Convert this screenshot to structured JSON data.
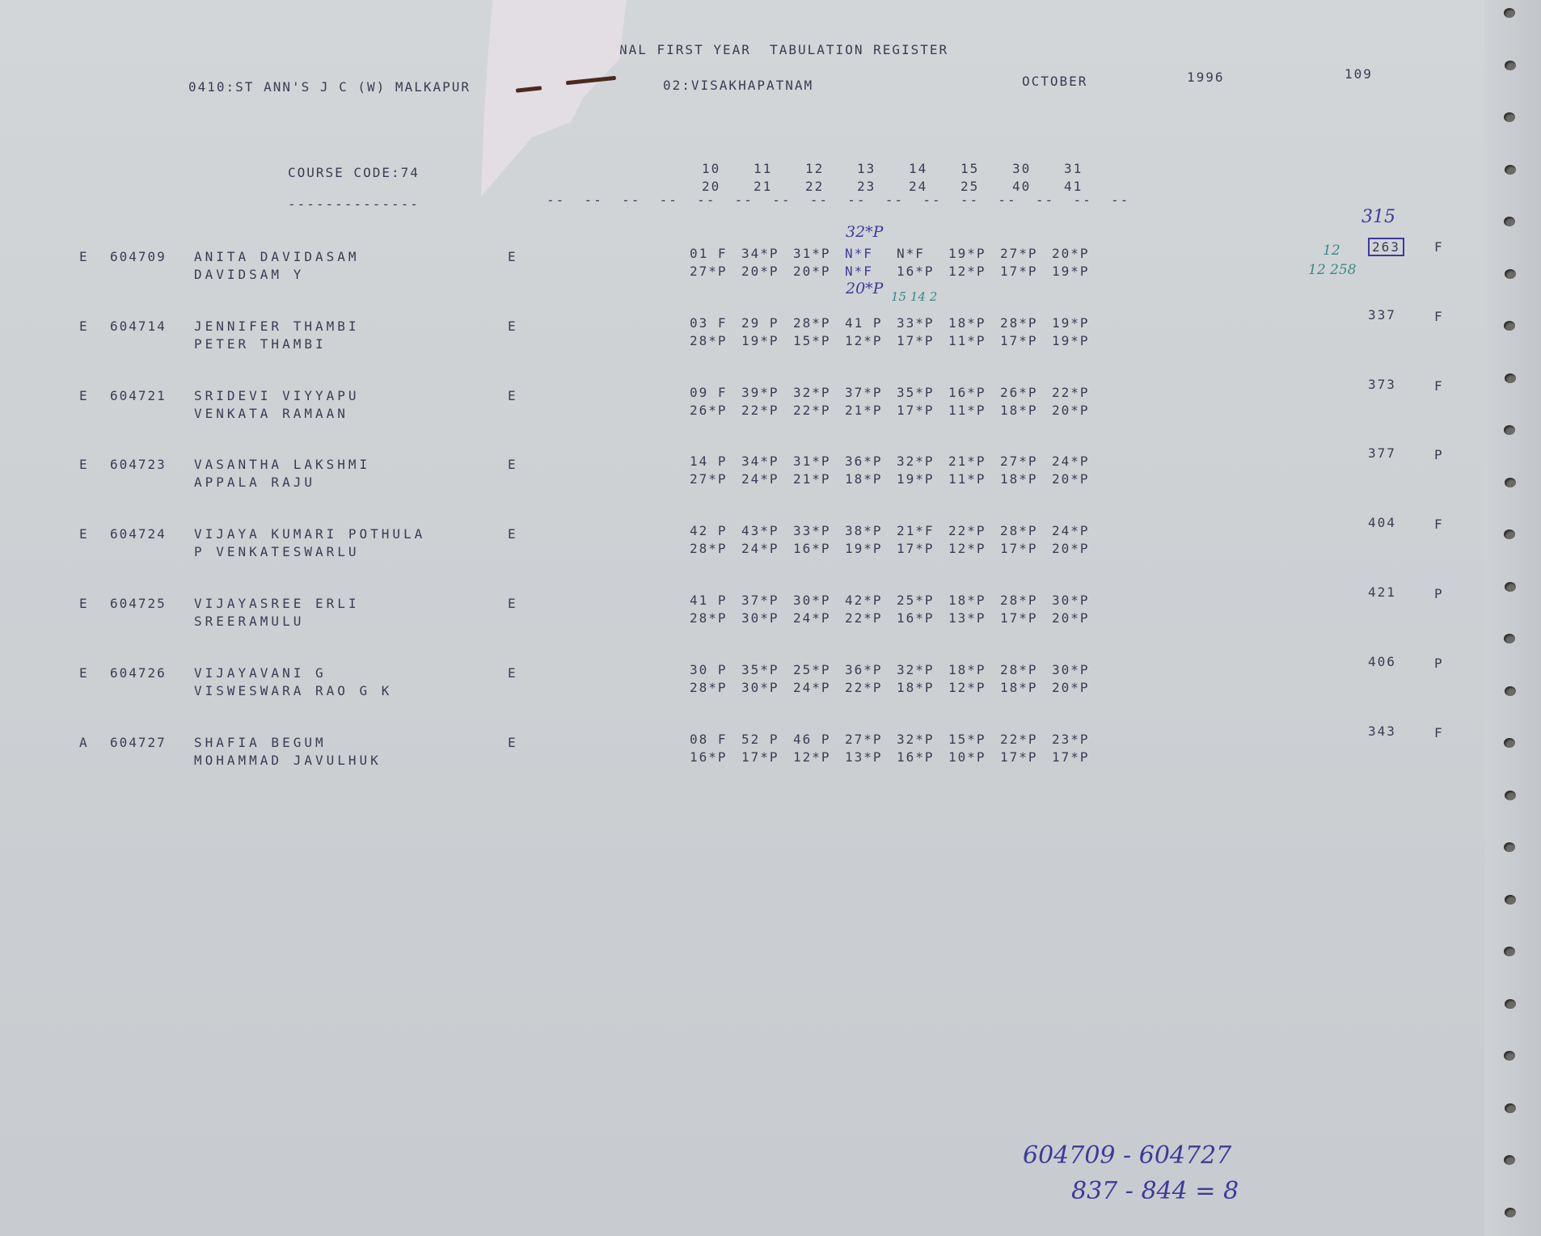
{
  "header": {
    "title": "NAL FIRST YEAR  TABULATION REGISTER",
    "college": "0410:ST ANN'S J C (W) MALKAPUR",
    "district": "02:VISAKHAPATNAM",
    "month": "OCTOBER",
    "year": "1996",
    "page": "109",
    "course_code": "COURSE CODE:74",
    "course_underline": "--------------",
    "subject_codes_top": [
      "10",
      "11",
      "12",
      "13",
      "14",
      "15",
      "30",
      "31"
    ],
    "subject_codes_bottom": [
      "20",
      "21",
      "22",
      "23",
      "24",
      "25",
      "40",
      "41"
    ],
    "dash_marks": "--  --  --  --  --  --  --  --  --  --  --  --  --  --  --  --"
  },
  "rows": [
    {
      "cat": "E",
      "roll": "604709",
      "name": "ANITA DAVIDASAM",
      "parent": "DAVIDSAM Y",
      "medium": "E",
      "marks1": [
        "01 F",
        "34*P",
        "31*P",
        "N*F",
        "N*F",
        "19*P",
        "27*P",
        "20*P"
      ],
      "marks2": [
        "27*P",
        "20*P",
        "20*P",
        "N*F",
        "16*P",
        "12*P",
        "17*P",
        "19*P"
      ],
      "total": "263",
      "result": "F"
    },
    {
      "cat": "E",
      "roll": "604714",
      "name": "JENNIFER THAMBI",
      "parent": "PETER THAMBI",
      "medium": "E",
      "marks1": [
        "03 F",
        "29 P",
        "28*P",
        "41 P",
        "33*P",
        "18*P",
        "28*P",
        "19*P"
      ],
      "marks2": [
        "28*P",
        "19*P",
        "15*P",
        "12*P",
        "17*P",
        "11*P",
        "17*P",
        "19*P"
      ],
      "total": "337",
      "result": "F"
    },
    {
      "cat": "E",
      "roll": "604721",
      "name": "SRIDEVI VIYYAPU",
      "parent": "VENKATA RAMAAN",
      "medium": "E",
      "marks1": [
        "09 F",
        "39*P",
        "32*P",
        "37*P",
        "35*P",
        "16*P",
        "26*P",
        "22*P"
      ],
      "marks2": [
        "26*P",
        "22*P",
        "22*P",
        "21*P",
        "17*P",
        "11*P",
        "18*P",
        "20*P"
      ],
      "total": "373",
      "result": "F"
    },
    {
      "cat": "E",
      "roll": "604723",
      "name": "VASANTHA LAKSHMI",
      "parent": "APPALA RAJU",
      "medium": "E",
      "marks1": [
        "14 P",
        "34*P",
        "31*P",
        "36*P",
        "32*P",
        "21*P",
        "27*P",
        "24*P"
      ],
      "marks2": [
        "27*P",
        "24*P",
        "21*P",
        "18*P",
        "19*P",
        "11*P",
        "18*P",
        "20*P"
      ],
      "total": "377",
      "result": "P"
    },
    {
      "cat": "E",
      "roll": "604724",
      "name": "VIJAYA KUMARI POTHULA",
      "parent": "P VENKATESWARLU",
      "medium": "E",
      "marks1": [
        "42 P",
        "43*P",
        "33*P",
        "38*P",
        "21*F",
        "22*P",
        "28*P",
        "24*P"
      ],
      "marks2": [
        "28*P",
        "24*P",
        "16*P",
        "19*P",
        "17*P",
        "12*P",
        "17*P",
        "20*P"
      ],
      "total": "404",
      "result": "F"
    },
    {
      "cat": "E",
      "roll": "604725",
      "name": "VIJAYASREE ERLI",
      "parent": "SREERAMULU",
      "medium": "E",
      "marks1": [
        "41 P",
        "37*P",
        "30*P",
        "42*P",
        "25*P",
        "18*P",
        "28*P",
        "30*P"
      ],
      "marks2": [
        "28*P",
        "30*P",
        "24*P",
        "22*P",
        "16*P",
        "13*P",
        "17*P",
        "20*P"
      ],
      "total": "421",
      "result": "P"
    },
    {
      "cat": "E",
      "roll": "604726",
      "name": "VIJAYAVANI G",
      "parent": "VISWESWARA RAO G K",
      "medium": "E",
      "marks1": [
        "30 P",
        "35*P",
        "25*P",
        "36*P",
        "32*P",
        "18*P",
        "28*P",
        "30*P"
      ],
      "marks2": [
        "28*P",
        "30*P",
        "24*P",
        "22*P",
        "18*P",
        "12*P",
        "18*P",
        "20*P"
      ],
      "total": "406",
      "result": "P"
    },
    {
      "cat": "A",
      "roll": "604727",
      "name": "SHAFIA BEGUM",
      "parent": "MOHAMMAD JAVULHUK",
      "medium": "E",
      "marks1": [
        "08 F",
        "52 P",
        "46 P",
        "27*P",
        "32*P",
        "15*P",
        "22*P",
        "23*P"
      ],
      "marks2": [
        "16*P",
        "17*P",
        "12*P",
        "13*P",
        "16*P",
        "10*P",
        "17*P",
        "17*P"
      ],
      "total": "343",
      "result": "F"
    }
  ],
  "annotations": {
    "correction_top": "32*P",
    "correction_bottom": "20*P",
    "correction_note": "15 14 2",
    "revised_total": "315",
    "side_note_1": "12",
    "side_note_2": "12 258",
    "range_line": "604709 - 604727",
    "count_line": "837 - 844 = 8"
  },
  "colors": {
    "paper": "#cfd3d6",
    "print": "#3b3b55",
    "ink_blue": "#3d3a9a",
    "ink_green": "#3a8a8a"
  }
}
